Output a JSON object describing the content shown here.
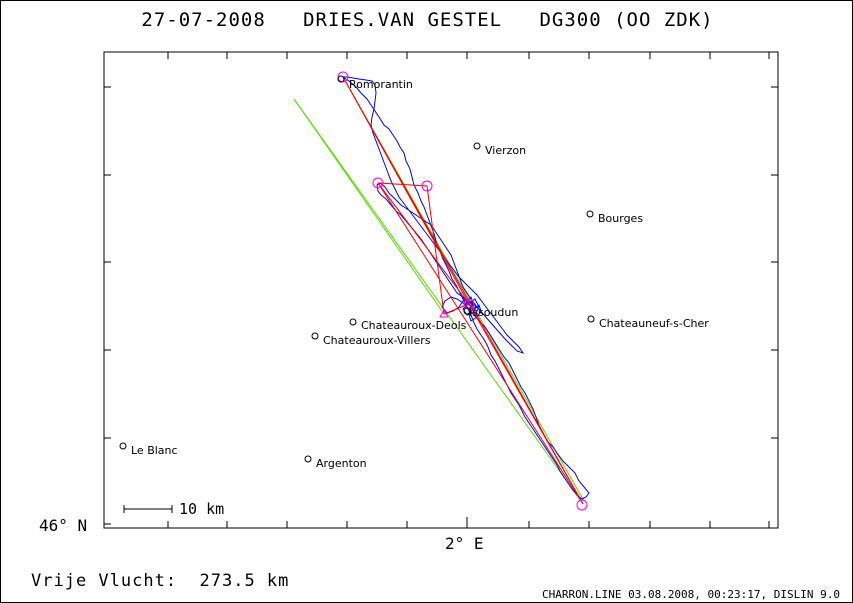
{
  "header": {
    "date": "27-07-2008",
    "pilot": "DRIES.VAN GESTEL",
    "glider": "DG300 (OO ZDK)"
  },
  "axes": {
    "lat_label": "46° N",
    "lon_label": "2° E"
  },
  "scale": {
    "label": "10 km"
  },
  "footer": {
    "distance_text": "Vrije Vlucht:  273.5 km",
    "credits": "CHARRON.LINE 03.08.2008, 00:23:17, DISLIN 9.0"
  },
  "towns": [
    {
      "name": "Romorantin"
    },
    {
      "name": "Vierzon"
    },
    {
      "name": "Bourges"
    },
    {
      "name": "Issoudun"
    },
    {
      "name": "Chateauroux-Deols"
    },
    {
      "name": "Chateauneuf-s-Cher"
    },
    {
      "name": "Chateauroux-Villers"
    },
    {
      "name": "Le Blanc"
    },
    {
      "name": "Argenton"
    }
  ],
  "colors": {
    "track": "#0000ff",
    "task": "#ff0000",
    "course": "#55dd00",
    "turnpoint": "#ff00ff"
  }
}
